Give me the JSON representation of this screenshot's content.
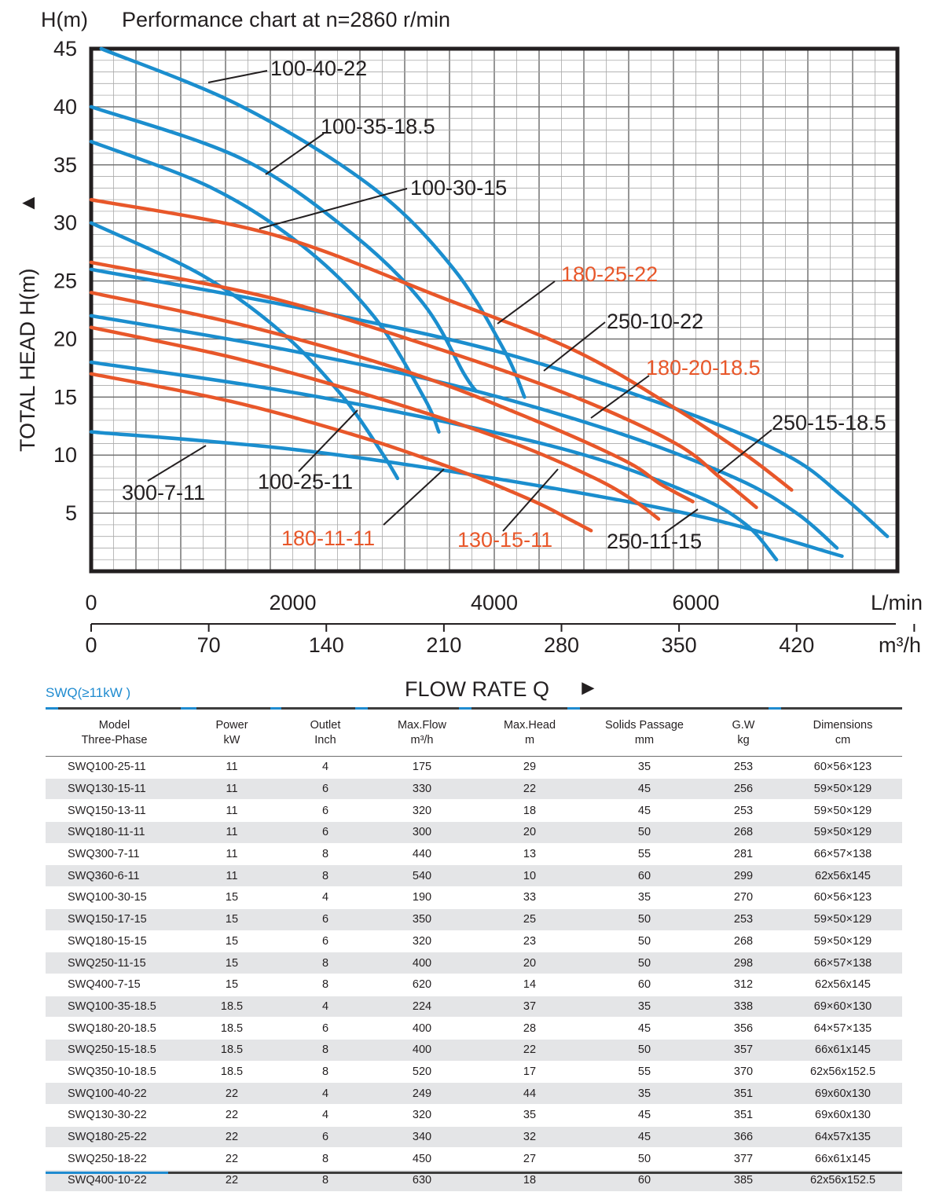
{
  "chart_data": {
    "type": "line",
    "title": "Performance chart at n=2860 r/min",
    "ylabel": "TOTAL HEAD H(m)",
    "ylabel_unit": "H(m)",
    "ylabel_arrow": "▲",
    "xlabel": "FLOW RATE Q",
    "xlabel_arrow": "►",
    "x_unit_top": "L/min",
    "x_unit_bottom": "m³/h",
    "xlim_lmin": [
      0,
      8000
    ],
    "ylim": [
      0,
      45
    ],
    "grid": true,
    "y_ticks": [
      "45",
      "40",
      "35",
      "30",
      "25",
      "20",
      "15",
      "10",
      "5"
    ],
    "x_ticks_lmin": [
      "0",
      "2000",
      "4000",
      "6000"
    ],
    "x_ticks_m3h": [
      "0",
      "70",
      "140",
      "210",
      "280",
      "350",
      "420"
    ],
    "series": [
      {
        "name": "100-40-22",
        "color": "#1b8ece",
        "x_lmin": [
          100,
          1500,
          2800,
          3600,
          4100,
          4300
        ],
        "y": [
          45,
          40,
          33,
          26,
          19,
          15
        ]
      },
      {
        "name": "100-35-18.5",
        "color": "#1b8ece",
        "x_lmin": [
          0,
          1500,
          2600,
          3300,
          3700,
          3820
        ],
        "y": [
          40,
          35.5,
          29,
          23,
          17,
          15.5
        ]
      },
      {
        "name": "100-30-15",
        "color": "#1b8ece",
        "x_lmin": [
          0,
          1200,
          2100,
          2800,
          3300,
          3450
        ],
        "y": [
          37,
          33,
          28,
          22,
          15,
          12
        ]
      },
      {
        "name": "100-25-11",
        "color": "#1b8ece",
        "x_lmin": [
          0,
          1100,
          1900,
          2500,
          2900,
          3040
        ],
        "y": [
          30,
          25.5,
          20.5,
          15,
          10,
          8
        ]
      },
      {
        "name": "250-10-22",
        "color": "#1b8ece",
        "x_lmin": [
          0,
          2000,
          4000,
          5800,
          6900,
          7450,
          7900
        ],
        "y": [
          26,
          22.8,
          19,
          14,
          10,
          6.5,
          3
        ]
      },
      {
        "name": "250-15-18.5",
        "color": "#1b8ece",
        "x_lmin": [
          0,
          1800,
          3600,
          5200,
          6400,
          7000,
          7400
        ],
        "y": [
          22,
          19.3,
          16,
          12,
          8,
          5,
          2
        ]
      },
      {
        "name": "250-11-15",
        "color": "#1b8ece",
        "x_lmin": [
          0,
          1800,
          3500,
          4900,
          6000,
          6500,
          6800
        ],
        "y": [
          18,
          15.7,
          12.9,
          10,
          6.5,
          4,
          1
        ]
      },
      {
        "name": "300-7-11",
        "color": "#1b8ece",
        "x_lmin": [
          0,
          2000,
          4000,
          6000,
          7450
        ],
        "y": [
          12,
          10.5,
          8,
          4.8,
          1.3
        ]
      },
      {
        "name": "180-25-22",
        "color": "#e8572a",
        "x_lmin": [
          0,
          1800,
          3500,
          4800,
          5800,
          6500,
          6950
        ],
        "y": [
          32,
          29,
          23.5,
          19,
          14,
          10,
          7
        ]
      },
      {
        "name": "180-20-18.5",
        "color": "#e8572a",
        "x_lmin": [
          0,
          1800,
          3500,
          4800,
          5800,
          6250,
          6600
        ],
        "y": [
          26.6,
          23.5,
          19,
          15,
          11,
          8,
          5.5
        ]
      },
      {
        "name": "180-20-18.5b",
        "color": "#e8572a",
        "x_lmin": [
          0,
          1600,
          3200,
          4400,
          5300,
          5650,
          5970
        ],
        "y": [
          24,
          21,
          17,
          13,
          9.5,
          7.5,
          6
        ]
      },
      {
        "name": "180-11-11",
        "color": "#e8572a",
        "x_lmin": [
          0,
          1500,
          3000,
          4200,
          5000,
          5400,
          5630
        ],
        "y": [
          21,
          18.2,
          14.5,
          11,
          8,
          6,
          4.5
        ]
      },
      {
        "name": "130-15-11",
        "color": "#e8572a",
        "x_lmin": [
          0,
          1400,
          2700,
          3700,
          4400,
          4740,
          4960
        ],
        "y": [
          17,
          14.6,
          11.5,
          8.5,
          6,
          4.5,
          3.5
        ]
      }
    ],
    "curve_labels": [
      {
        "text": "100-40-22",
        "color": "#231f20"
      },
      {
        "text": "100-35-18.5",
        "color": "#231f20"
      },
      {
        "text": "100-30-15",
        "color": "#231f20"
      },
      {
        "text": "180-25-22",
        "color": "#e8572a"
      },
      {
        "text": "250-10-22",
        "color": "#231f20"
      },
      {
        "text": "180-20-18.5",
        "color": "#e8572a"
      },
      {
        "text": "250-15-18.5",
        "color": "#231f20"
      },
      {
        "text": "300-7-11",
        "color": "#231f20"
      },
      {
        "text": "100-25-11",
        "color": "#231f20"
      },
      {
        "text": "180-11-11",
        "color": "#e8572a"
      },
      {
        "text": "130-15-11",
        "color": "#e8572a"
      },
      {
        "text": "250-11-15",
        "color": "#231f20"
      }
    ]
  },
  "table": {
    "series_title": "SWQ(≥11kW )",
    "headers": [
      {
        "l1": "Model",
        "l2": "Three-Phase"
      },
      {
        "l1": "Power",
        "l2": "kW"
      },
      {
        "l1": "Outlet",
        "l2": "Inch"
      },
      {
        "l1": "Max.Flow",
        "l2": "m³/h"
      },
      {
        "l1": "Max.Head",
        "l2": "m"
      },
      {
        "l1": "Solids Passage",
        "l2": "mm"
      },
      {
        "l1": "G.W",
        "l2": "kg"
      },
      {
        "l1": "Dimensions",
        "l2": "cm"
      }
    ],
    "rows": [
      [
        "SWQ100-25-11",
        "11",
        "4",
        "175",
        "29",
        "35",
        "253",
        "60×56×123"
      ],
      [
        "SWQ130-15-11",
        "11",
        "6",
        "330",
        "22",
        "45",
        "256",
        "59×50×129"
      ],
      [
        "SWQ150-13-11",
        "11",
        "6",
        "320",
        "18",
        "45",
        "253",
        "59×50×129"
      ],
      [
        "SWQ180-11-11",
        "11",
        "6",
        "300",
        "20",
        "50",
        "268",
        "59×50×129"
      ],
      [
        "SWQ300-7-11",
        "11",
        "8",
        "440",
        "13",
        "55",
        "281",
        "66×57×138"
      ],
      [
        "SWQ360-6-11",
        "11",
        "8",
        "540",
        "10",
        "60",
        "299",
        "62x56x145"
      ],
      [
        "SWQ100-30-15",
        "15",
        "4",
        "190",
        "33",
        "35",
        "270",
        "60×56×123"
      ],
      [
        "SWQ150-17-15",
        "15",
        "6",
        "350",
        "25",
        "50",
        "253",
        "59×50×129"
      ],
      [
        "SWQ180-15-15",
        "15",
        "6",
        "320",
        "23",
        "50",
        "268",
        "59×50×129"
      ],
      [
        "SWQ250-11-15",
        "15",
        "8",
        "400",
        "20",
        "50",
        "298",
        "66×57×138"
      ],
      [
        "SWQ400-7-15",
        "15",
        "8",
        "620",
        "14",
        "60",
        "312",
        "62x56x145"
      ],
      [
        "SWQ100-35-18.5",
        "18.5",
        "4",
        "224",
        "37",
        "35",
        "338",
        "69×60×130"
      ],
      [
        "SWQ180-20-18.5",
        "18.5",
        "6",
        "400",
        "28",
        "45",
        "356",
        "64×57×135"
      ],
      [
        "SWQ250-15-18.5",
        "18.5",
        "8",
        "400",
        "22",
        "50",
        "357",
        "66x61x145"
      ],
      [
        "SWQ350-10-18.5",
        "18.5",
        "8",
        "520",
        "17",
        "55",
        "370",
        "62x56x152.5"
      ],
      [
        "SWQ100-40-22",
        "22",
        "4",
        "249",
        "44",
        "35",
        "351",
        "69x60x130"
      ],
      [
        "SWQ130-30-22",
        "22",
        "4",
        "320",
        "35",
        "45",
        "351",
        "69x60x130"
      ],
      [
        "SWQ180-25-22",
        "22",
        "6",
        "340",
        "32",
        "45",
        "366",
        "64x57x135"
      ],
      [
        "SWQ250-18-22",
        "22",
        "8",
        "450",
        "27",
        "50",
        "377",
        "66x61x145"
      ],
      [
        "SWQ400-10-22",
        "22",
        "8",
        "630",
        "18",
        "60",
        "385",
        "62x56x152.5"
      ]
    ]
  }
}
